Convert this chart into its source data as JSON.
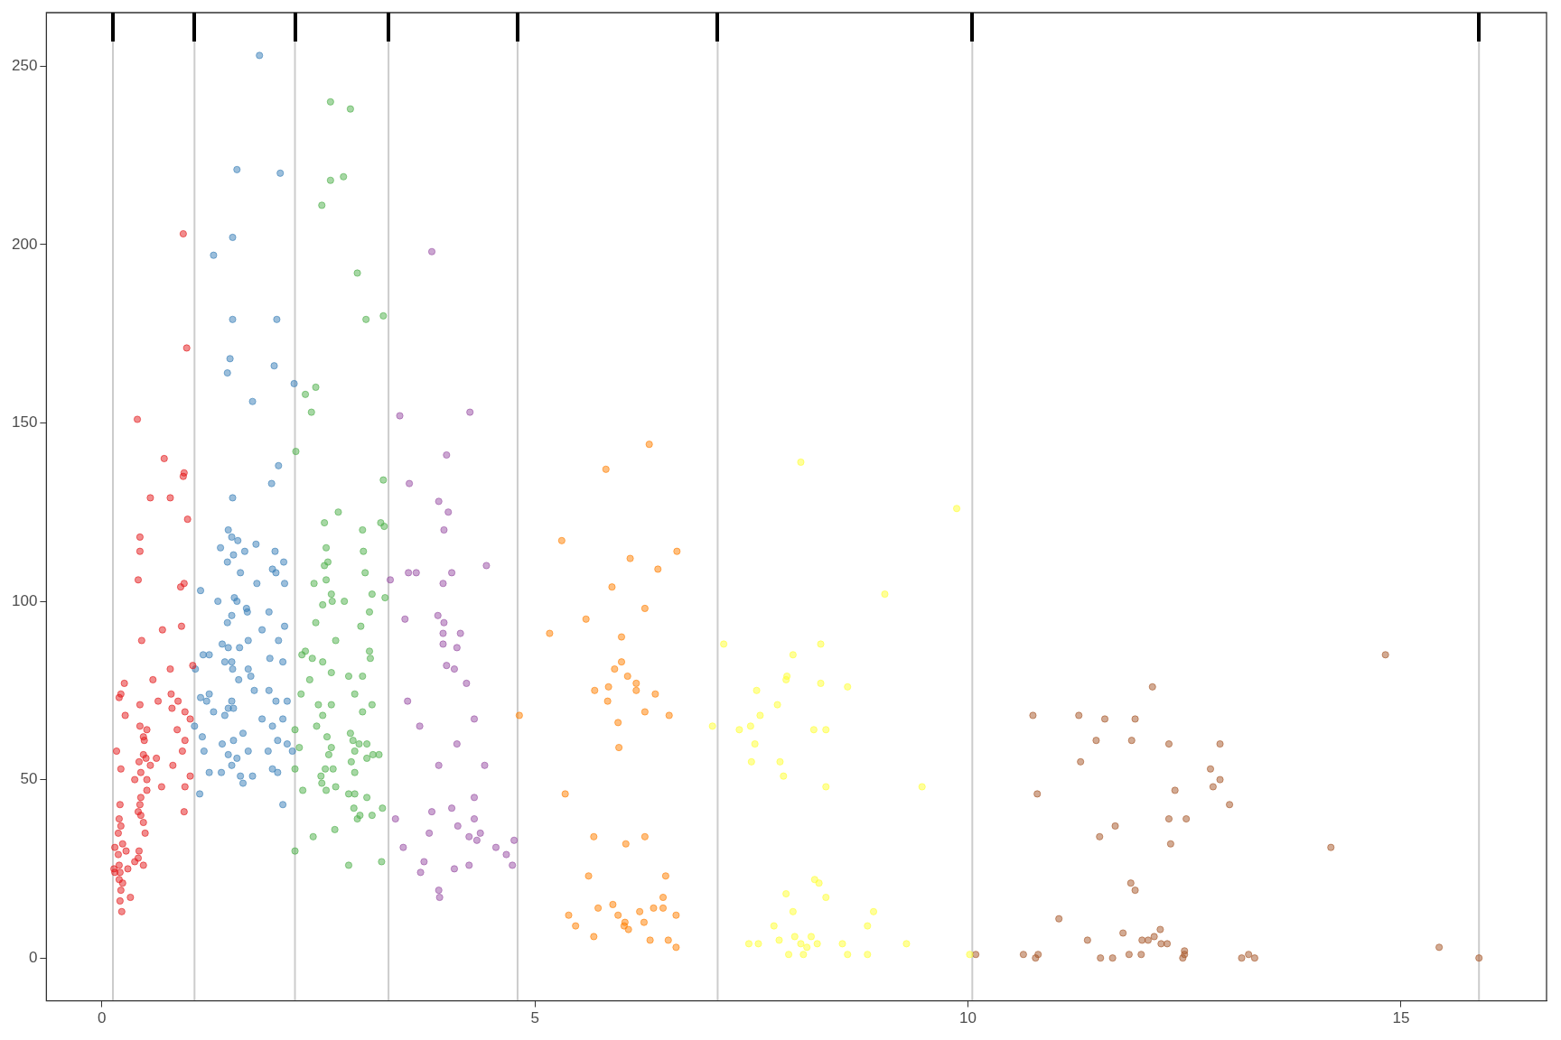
{
  "chart_data": {
    "type": "scatter",
    "marker": "circle",
    "grid": false,
    "legend": false,
    "xlim": [
      -0.64,
      16.68
    ],
    "ylim": [
      -12,
      265
    ],
    "xticks": [
      0,
      5,
      10,
      15
    ],
    "yticks": [
      0,
      50,
      100,
      150,
      200,
      250
    ],
    "ref_lines": [
      {
        "axis": "x",
        "value": 0.128,
        "color": "#cccccc"
      },
      {
        "axis": "x",
        "value": 1.07,
        "color": "#cccccc"
      },
      {
        "axis": "x",
        "value": 2.23,
        "color": "#cccccc"
      },
      {
        "axis": "x",
        "value": 3.31,
        "color": "#cccccc"
      },
      {
        "axis": "x",
        "value": 4.8,
        "color": "#cccccc"
      },
      {
        "axis": "x",
        "value": 7.11,
        "color": "#cccccc"
      },
      {
        "axis": "x",
        "value": 10.05,
        "color": "#cccccc"
      },
      {
        "axis": "x",
        "value": 15.9,
        "color": "#cccccc"
      }
    ],
    "series": [
      {
        "color": "#e41a1c",
        "x": [
          0.94,
          0.98,
          0.41,
          0.72,
          0.95,
          0.94,
          0.56,
          0.79,
          0.99,
          0.44,
          0.44,
          0.42,
          0.95,
          0.91,
          0.7,
          0.92,
          0.46,
          1.05,
          0.79,
          0.59,
          0.26,
          0.22,
          0.8,
          0.2,
          0.65,
          0.88,
          0.44,
          0.81,
          0.96,
          0.27,
          1.02,
          0.44,
          0.52,
          0.87,
          0.48,
          0.49,
          0.96,
          0.17,
          0.93,
          0.48,
          0.51,
          0.63,
          0.43,
          0.82,
          0.56,
          0.22,
          0.45,
          1.02,
          0.38,
          0.52,
          0.96,
          0.69,
          0.52,
          0.45,
          0.44,
          0.21,
          0.95,
          0.42,
          0.45,
          0.2,
          0.48,
          0.22,
          0.5,
          0.19,
          0.24,
          0.15,
          0.43,
          0.28,
          0.19,
          0.42,
          0.2,
          0.48,
          0.14,
          0.21,
          0.15,
          0.3,
          0.2,
          0.24,
          0.22,
          0.21,
          0.23,
          0.33,
          0.38
        ],
        "values": [
          203,
          171,
          151,
          140,
          136,
          135,
          129,
          129,
          123,
          118,
          114,
          106,
          105,
          104,
          92,
          93,
          89,
          82,
          81,
          78,
          77,
          74,
          74,
          73,
          72,
          72,
          71,
          70,
          69,
          68,
          67,
          65,
          64,
          64,
          62,
          61,
          61,
          58,
          58,
          57,
          56,
          56,
          55,
          54,
          54,
          53,
          52,
          51,
          50,
          50,
          48,
          48,
          47,
          45,
          43,
          43,
          41,
          41,
          40,
          39,
          38,
          37,
          35,
          35,
          32,
          31,
          30,
          30,
          29,
          28,
          26,
          26,
          25,
          24,
          24,
          25,
          22,
          21,
          19,
          16,
          13,
          17,
          27
        ]
      },
      {
        "color": "#377eb8",
        "x": [
          1.82,
          1.56,
          2.06,
          1.51,
          1.29,
          1.51,
          2.02,
          1.48,
          1.99,
          1.45,
          2.22,
          1.74,
          2.04,
          1.96,
          1.51,
          1.46,
          1.5,
          1.57,
          1.37,
          1.65,
          2.0,
          1.78,
          1.52,
          2.1,
          1.45,
          1.97,
          1.6,
          2.01,
          2.11,
          1.14,
          1.79,
          1.53,
          1.34,
          1.56,
          1.67,
          1.93,
          1.68,
          1.5,
          2.11,
          1.45,
          1.85,
          2.04,
          1.69,
          1.39,
          1.46,
          1.59,
          1.17,
          1.24,
          1.94,
          2.09,
          1.42,
          1.5,
          1.69,
          1.51,
          1.08,
          1.72,
          1.58,
          1.93,
          1.76,
          1.24,
          1.14,
          1.21,
          1.5,
          2.01,
          2.14,
          1.46,
          1.52,
          1.29,
          1.42,
          1.85,
          2.09,
          1.07,
          1.97,
          1.63,
          1.16,
          1.52,
          1.39,
          2.03,
          2.14,
          1.69,
          1.92,
          1.18,
          2.2,
          1.46,
          1.56,
          1.5,
          1.97,
          1.24,
          1.38,
          1.74,
          1.6,
          2.03,
          1.63,
          1.13,
          2.09
        ],
        "values": [
          253,
          221,
          220,
          202,
          197,
          179,
          179,
          168,
          166,
          164,
          161,
          156,
          138,
          133,
          129,
          120,
          118,
          117,
          115,
          114,
          114,
          116,
          113,
          111,
          111,
          109,
          108,
          108,
          105,
          103,
          105,
          101,
          100,
          100,
          98,
          97,
          97,
          96,
          93,
          94,
          92,
          89,
          89,
          88,
          87,
          87,
          85,
          85,
          84,
          83,
          83,
          83,
          81,
          81,
          81,
          79,
          78,
          75,
          75,
          74,
          73,
          72,
          72,
          72,
          72,
          70,
          70,
          69,
          68,
          67,
          67,
          65,
          65,
          63,
          62,
          61,
          60,
          61,
          60,
          58,
          58,
          58,
          58,
          57,
          56,
          54,
          53,
          52,
          52,
          51,
          51,
          52,
          49,
          46,
          43
        ]
      },
      {
        "color": "#4daf4a",
        "x": [
          2.64,
          2.87,
          2.79,
          2.64,
          2.54,
          2.95,
          3.25,
          3.05,
          2.47,
          2.35,
          2.42,
          2.24,
          3.25,
          2.73,
          3.22,
          2.57,
          3.26,
          3.01,
          2.59,
          3.02,
          2.61,
          2.57,
          3.04,
          2.59,
          2.45,
          3.12,
          2.65,
          3.27,
          2.8,
          2.66,
          2.55,
          3.09,
          2.99,
          2.47,
          2.7,
          2.35,
          2.31,
          3.09,
          3.1,
          2.43,
          2.55,
          2.65,
          2.85,
          3.01,
          2.4,
          2.3,
          2.92,
          2.5,
          2.65,
          3.12,
          3.01,
          2.55,
          2.48,
          2.23,
          2.87,
          2.6,
          2.9,
          2.97,
          3.06,
          2.65,
          2.28,
          2.92,
          2.62,
          3.2,
          3.13,
          3.06,
          2.88,
          2.23,
          2.67,
          2.58,
          2.92,
          2.53,
          2.54,
          2.7,
          2.32,
          2.59,
          2.92,
          2.85,
          3.06,
          2.91,
          3.24,
          2.98,
          3.12,
          2.95,
          2.69,
          2.44,
          2.23,
          3.23,
          2.85
        ],
        "values": [
          240,
          238,
          219,
          218,
          211,
          192,
          180,
          179,
          160,
          158,
          153,
          142,
          134,
          125,
          122,
          122,
          121,
          120,
          115,
          114,
          111,
          110,
          108,
          106,
          105,
          102,
          102,
          101,
          100,
          100,
          99,
          97,
          93,
          94,
          89,
          86,
          85,
          86,
          84,
          84,
          83,
          80,
          79,
          79,
          78,
          74,
          74,
          71,
          71,
          71,
          69,
          68,
          65,
          64,
          63,
          62,
          61,
          60,
          60,
          59,
          59,
          58,
          57,
          57,
          57,
          56,
          55,
          53,
          53,
          53,
          52,
          51,
          49,
          48,
          47,
          47,
          46,
          46,
          45,
          42,
          42,
          40,
          40,
          39,
          36,
          34,
          30,
          27,
          26
        ]
      },
      {
        "color": "#984ea3",
        "x": [
          3.81,
          3.44,
          4.25,
          3.98,
          3.55,
          3.89,
          4.0,
          3.95,
          4.44,
          3.54,
          3.63,
          4.04,
          3.33,
          3.94,
          3.5,
          3.88,
          3.95,
          3.94,
          4.14,
          3.94,
          4.1,
          3.98,
          4.07,
          4.21,
          3.53,
          4.3,
          3.67,
          4.1,
          3.89,
          4.42,
          4.3,
          4.04,
          3.81,
          4.3,
          3.39,
          4.11,
          3.78,
          4.37,
          4.24,
          4.33,
          4.76,
          3.48,
          4.55,
          4.67,
          3.72,
          4.74,
          4.24,
          4.07,
          3.68,
          3.89,
          3.9
        ],
        "values": [
          198,
          152,
          153,
          141,
          133,
          128,
          125,
          120,
          110,
          108,
          108,
          108,
          106,
          105,
          95,
          96,
          94,
          91,
          91,
          88,
          87,
          82,
          81,
          77,
          72,
          67,
          65,
          60,
          54,
          54,
          45,
          42,
          41,
          39,
          39,
          37,
          35,
          35,
          34,
          33,
          33,
          31,
          31,
          29,
          27,
          26,
          26,
          25,
          24,
          19,
          17
        ]
      },
      {
        "color": "#ff7f00",
        "x": [
          6.32,
          5.82,
          5.31,
          6.64,
          6.1,
          5.89,
          6.42,
          5.59,
          6.27,
          5.17,
          6.0,
          6.0,
          5.92,
          6.07,
          6.17,
          6.17,
          5.69,
          5.85,
          6.39,
          5.84,
          6.27,
          6.55,
          4.82,
          5.96,
          5.97,
          5.35,
          5.68,
          6.27,
          6.05,
          6.51,
          5.62,
          6.48,
          5.39,
          5.47,
          5.9,
          5.73,
          5.96,
          6.21,
          6.37,
          6.48,
          6.63,
          6.04,
          6.26,
          6.08,
          6.03,
          5.68,
          6.33,
          6.54,
          6.63
        ],
        "values": [
          144,
          137,
          117,
          114,
          112,
          104,
          109,
          95,
          98,
          91,
          90,
          83,
          81,
          79,
          77,
          75,
          75,
          76,
          74,
          72,
          69,
          68,
          68,
          66,
          59,
          46,
          34,
          34,
          32,
          23,
          23,
          17,
          12,
          9,
          15,
          14,
          12,
          13,
          14,
          14,
          12,
          10,
          10,
          8,
          9,
          6,
          5,
          5,
          3
        ]
      },
      {
        "color": "#ffff33",
        "x": [
          8.07,
          9.87,
          9.04,
          7.18,
          8.3,
          7.98,
          7.91,
          7.9,
          8.61,
          8.3,
          7.56,
          7.6,
          7.49,
          7.05,
          7.36,
          8.22,
          8.36,
          7.8,
          7.54,
          7.5,
          7.83,
          7.87,
          8.36,
          9.47,
          8.23,
          8.28,
          7.9,
          8.36,
          8.91,
          7.98,
          8.84,
          7.76,
          8.0,
          8.19,
          7.82,
          8.55,
          7.47,
          7.58,
          9.29,
          8.07,
          8.26,
          8.14,
          7.93,
          8.1,
          8.61,
          8.84,
          10.02
        ],
        "values": [
          139,
          126,
          102,
          88,
          88,
          85,
          79,
          78,
          76,
          77,
          75,
          68,
          65,
          65,
          64,
          64,
          64,
          71,
          60,
          55,
          55,
          51,
          48,
          48,
          22,
          21,
          18,
          17,
          13,
          13,
          9,
          9,
          6,
          6,
          5,
          4,
          4,
          4,
          4,
          4,
          4,
          3,
          1,
          1,
          1,
          1,
          1
        ]
      },
      {
        "color": "#a65628",
        "x": [
          14.82,
          12.13,
          10.75,
          11.28,
          11.58,
          11.93,
          11.48,
          11.89,
          12.91,
          12.32,
          11.3,
          12.8,
          12.91,
          12.83,
          12.39,
          10.8,
          13.02,
          12.32,
          12.52,
          11.7,
          11.52,
          12.34,
          14.19,
          11.88,
          11.93,
          11.05,
          12.22,
          11.38,
          12.15,
          12.23,
          12.3,
          12.08,
          12.01,
          11.79,
          15.44,
          12.5,
          12.5,
          11.86,
          12.0,
          11.53,
          11.67,
          10.64,
          10.78,
          10.81,
          13.16,
          13.24,
          13.31,
          15.9,
          10.09,
          12.48
        ],
        "values": [
          85,
          76,
          68,
          68,
          67,
          67,
          61,
          61,
          60,
          60,
          55,
          53,
          50,
          48,
          47,
          46,
          43,
          39,
          39,
          37,
          34,
          32,
          31,
          21,
          19,
          11,
          8,
          5,
          6,
          4,
          4,
          5,
          5,
          7,
          3,
          2,
          1,
          1,
          1,
          0,
          0,
          1,
          0,
          1,
          0,
          1,
          0,
          0,
          1,
          0
        ]
      }
    ]
  }
}
